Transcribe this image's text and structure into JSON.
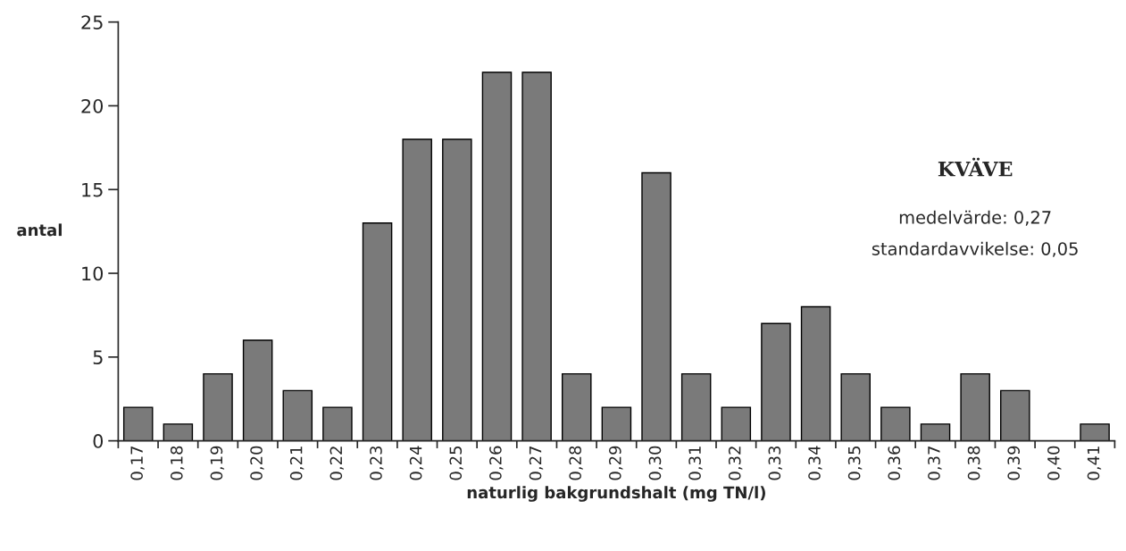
{
  "chart_data": {
    "type": "bar",
    "categories": [
      "0,17",
      "0,18",
      "0,19",
      "0,20",
      "0,21",
      "0,22",
      "0,23",
      "0,24",
      "0,25",
      "0,26",
      "0,27",
      "0,28",
      "0,29",
      "0,30",
      "0,31",
      "0,32",
      "0,33",
      "0,34",
      "0,35",
      "0,36",
      "0,37",
      "0,38",
      "0,39",
      "0,40",
      "0,41"
    ],
    "values": [
      2,
      1,
      4,
      6,
      3,
      2,
      13,
      18,
      18,
      22,
      22,
      4,
      2,
      16,
      4,
      2,
      7,
      8,
      4,
      2,
      1,
      4,
      3,
      0,
      1
    ],
    "color": "#7a7a7a",
    "xlabel": "naturlig bakgrundshalt (mg TN/l)",
    "ylabel": "antal",
    "ylim": [
      0,
      25
    ],
    "yticks": [
      0,
      5,
      10,
      15,
      20,
      25
    ],
    "grid": false,
    "legend": false,
    "annotations": [
      "KVÄVE",
      "medelvärde: 0,27",
      "standardavvikelse: 0,05"
    ]
  }
}
